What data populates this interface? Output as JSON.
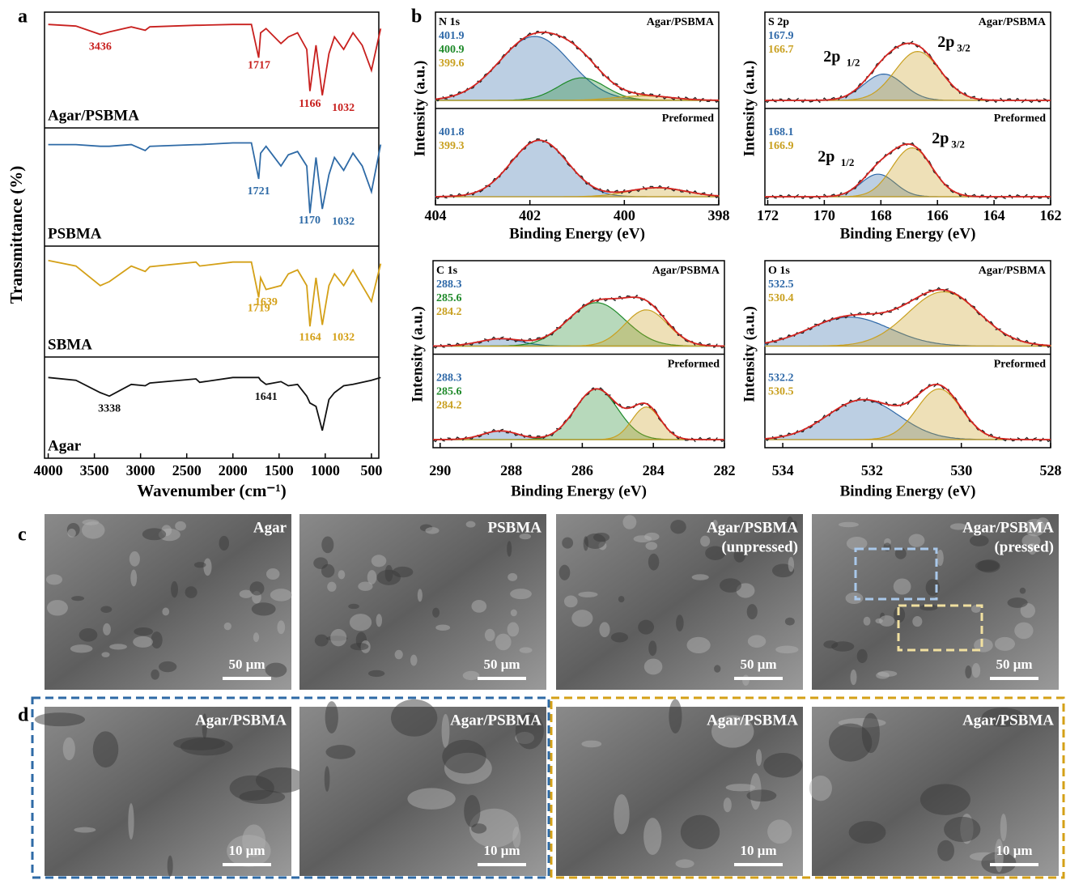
{
  "panel_labels": [
    "a",
    "b",
    "c",
    "d"
  ],
  "chart_data": [
    {
      "type": "line",
      "xlabel": "Wavenumber (cm⁻¹)",
      "ylabel": "Transmittance (%)",
      "xlim": [
        4040,
        420
      ],
      "xticks": [
        4000,
        3500,
        3000,
        2500,
        2000,
        1500,
        1000,
        500
      ],
      "ylim": [
        0,
        1
      ],
      "x": [
        4000,
        3700,
        3436,
        3338,
        3100,
        2950,
        2900,
        2400,
        2360,
        2000,
        1800,
        1721,
        1700,
        1641,
        1480,
        1400,
        1300,
        1200,
        1166,
        1100,
        1032,
        960,
        900,
        800,
        700,
        600,
        500,
        400
      ],
      "series": [
        {
          "name": "Agar/PSBMA",
          "color": "#c8201e",
          "peaks": [
            3436,
            1717,
            1166,
            1032
          ],
          "values": [
            0.95,
            0.93,
            0.83,
            0.86,
            0.92,
            0.88,
            0.92,
            0.94,
            0.94,
            0.95,
            0.95,
            0.55,
            0.85,
            0.9,
            0.72,
            0.8,
            0.85,
            0.65,
            0.15,
            0.7,
            0.1,
            0.6,
            0.8,
            0.65,
            0.85,
            0.7,
            0.4,
            0.9
          ]
        },
        {
          "name": "PSBMA",
          "color": "#2e6aa6",
          "peaks": [
            1721,
            1170,
            1032
          ],
          "values": [
            0.9,
            0.9,
            0.88,
            0.88,
            0.9,
            0.83,
            0.88,
            0.9,
            0.9,
            0.92,
            0.92,
            0.5,
            0.8,
            0.88,
            0.65,
            0.78,
            0.82,
            0.65,
            0.1,
            0.75,
            0.15,
            0.55,
            0.75,
            0.6,
            0.8,
            0.65,
            0.35,
            0.9
          ]
        },
        {
          "name": "SBMA",
          "color": "#d4a017",
          "peaks": [
            1719,
            1639,
            1164,
            1032
          ],
          "values": [
            0.92,
            0.85,
            0.6,
            0.65,
            0.85,
            0.78,
            0.84,
            0.9,
            0.85,
            0.9,
            0.9,
            0.45,
            0.7,
            0.55,
            0.6,
            0.75,
            0.8,
            0.6,
            0.08,
            0.7,
            0.1,
            0.6,
            0.75,
            0.6,
            0.8,
            0.6,
            0.4,
            0.88
          ]
        },
        {
          "name": "Agar",
          "color": "#111111",
          "peaks": [
            3338,
            1641
          ],
          "values": [
            0.82,
            0.78,
            0.6,
            0.55,
            0.72,
            0.7,
            0.74,
            0.8,
            0.75,
            0.82,
            0.82,
            0.82,
            0.78,
            0.72,
            0.76,
            0.7,
            0.72,
            0.55,
            0.45,
            0.4,
            0.05,
            0.5,
            0.6,
            0.7,
            0.72,
            0.75,
            0.78,
            0.82
          ]
        }
      ]
    },
    {
      "type": "line",
      "title": "N 1s",
      "xlabel": "Binding Energy (eV)",
      "ylabel": "Intensity (a.u.)",
      "xlim": [
        404,
        398
      ],
      "xticks": [
        404,
        402,
        400,
        398
      ],
      "panels": [
        {
          "name": "Agar/PSBMA",
          "components": [
            {
              "center": 401.9,
              "amplitude": 0.85,
              "width": 0.75,
              "color": "#2f69a8"
            },
            {
              "center": 400.9,
              "amplitude": 0.3,
              "width": 0.5,
              "color": "#1f8a2a"
            },
            {
              "center": 399.6,
              "amplitude": 0.06,
              "width": 0.6,
              "color": "#c9a020"
            }
          ]
        },
        {
          "name": "Preformed",
          "components": [
            {
              "center": 401.8,
              "amplitude": 0.75,
              "width": 0.6,
              "color": "#2f69a8"
            },
            {
              "center": 399.3,
              "amplitude": 0.12,
              "width": 0.6,
              "color": "#c9a020"
            }
          ]
        }
      ]
    },
    {
      "type": "line",
      "title": "S 2p",
      "xlabel": "Binding Energy (eV)",
      "ylabel": "Intensity (a.u.)",
      "xlim": [
        172.1,
        162
      ],
      "xticks": [
        172,
        170,
        168,
        166,
        164,
        162
      ],
      "panels": [
        {
          "name": "Agar/PSBMA",
          "components": [
            {
              "center": 167.9,
              "amplitude": 0.35,
              "width": 0.7,
              "color": "#2f69a8",
              "label_base": "2p",
              "label_sub": "1/2"
            },
            {
              "center": 166.7,
              "amplitude": 0.65,
              "width": 0.8,
              "color": "#c9a020",
              "label_base": "2p",
              "label_sub": "3/2"
            }
          ]
        },
        {
          "name": "Preformed",
          "components": [
            {
              "center": 168.1,
              "amplitude": 0.3,
              "width": 0.6,
              "color": "#2f69a8",
              "label_base": "2p",
              "label_sub": "1/2"
            },
            {
              "center": 166.9,
              "amplitude": 0.65,
              "width": 0.7,
              "color": "#c9a020",
              "label_base": "2p",
              "label_sub": "3/2"
            }
          ]
        }
      ]
    },
    {
      "type": "line",
      "title": "C 1s",
      "xlabel": "Binding Energy (eV)",
      "ylabel": "Intensity (a.u.)",
      "xlim": [
        290.2,
        282
      ],
      "xticks": [
        290,
        288,
        286,
        284,
        282
      ],
      "panels": [
        {
          "name": "Agar/PSBMA",
          "components": [
            {
              "center": 288.3,
              "amplitude": 0.1,
              "width": 0.6,
              "color": "#2f69a8"
            },
            {
              "center": 285.6,
              "amplitude": 0.6,
              "width": 0.8,
              "color": "#1f8a2a"
            },
            {
              "center": 284.2,
              "amplitude": 0.5,
              "width": 0.6,
              "color": "#c9a020"
            }
          ]
        },
        {
          "name": "Preformed",
          "components": [
            {
              "center": 288.3,
              "amplitude": 0.12,
              "width": 0.5,
              "color": "#2f69a8"
            },
            {
              "center": 285.6,
              "amplitude": 0.7,
              "width": 0.6,
              "color": "#1f8a2a"
            },
            {
              "center": 284.2,
              "amplitude": 0.45,
              "width": 0.4,
              "color": "#c9a020"
            }
          ]
        }
      ]
    },
    {
      "type": "line",
      "title": "O 1s",
      "xlabel": "Binding Energy (eV)",
      "ylabel": "Intensity (a.u.)",
      "xlim": [
        534.4,
        528
      ],
      "xticks": [
        534,
        532,
        530,
        528
      ],
      "panels": [
        {
          "name": "Agar/PSBMA",
          "components": [
            {
              "center": 532.5,
              "amplitude": 0.4,
              "width": 0.9,
              "color": "#2f69a8"
            },
            {
              "center": 530.4,
              "amplitude": 0.75,
              "width": 0.8,
              "color": "#c9a020"
            }
          ]
        },
        {
          "name": "Preformed",
          "components": [
            {
              "center": 532.2,
              "amplitude": 0.55,
              "width": 0.8,
              "color": "#2f69a8"
            },
            {
              "center": 530.5,
              "amplitude": 0.7,
              "width": 0.5,
              "color": "#c9a020"
            }
          ]
        }
      ]
    }
  ],
  "sem_images": [
    {
      "label": [
        "Agar"
      ],
      "scale_bar": "50 μm"
    },
    {
      "label": [
        "PSBMA"
      ],
      "scale_bar": "50 μm"
    },
    {
      "label": [
        "Agar/PSBMA",
        "(unpressed)"
      ],
      "scale_bar": "50 μm"
    },
    {
      "label": [
        "Agar/PSBMA",
        "(pressed)"
      ],
      "scale_bar": "50 μm"
    },
    {
      "label": [
        "Agar/PSBMA"
      ],
      "scale_bar": "10 μm"
    },
    {
      "label": [
        "Agar/PSBMA"
      ],
      "scale_bar": "10 μm"
    },
    {
      "label": [
        "Agar/PSBMA"
      ],
      "scale_bar": "10 μm"
    },
    {
      "label": [
        "Agar/PSBMA"
      ],
      "scale_bar": "10 μm"
    }
  ]
}
